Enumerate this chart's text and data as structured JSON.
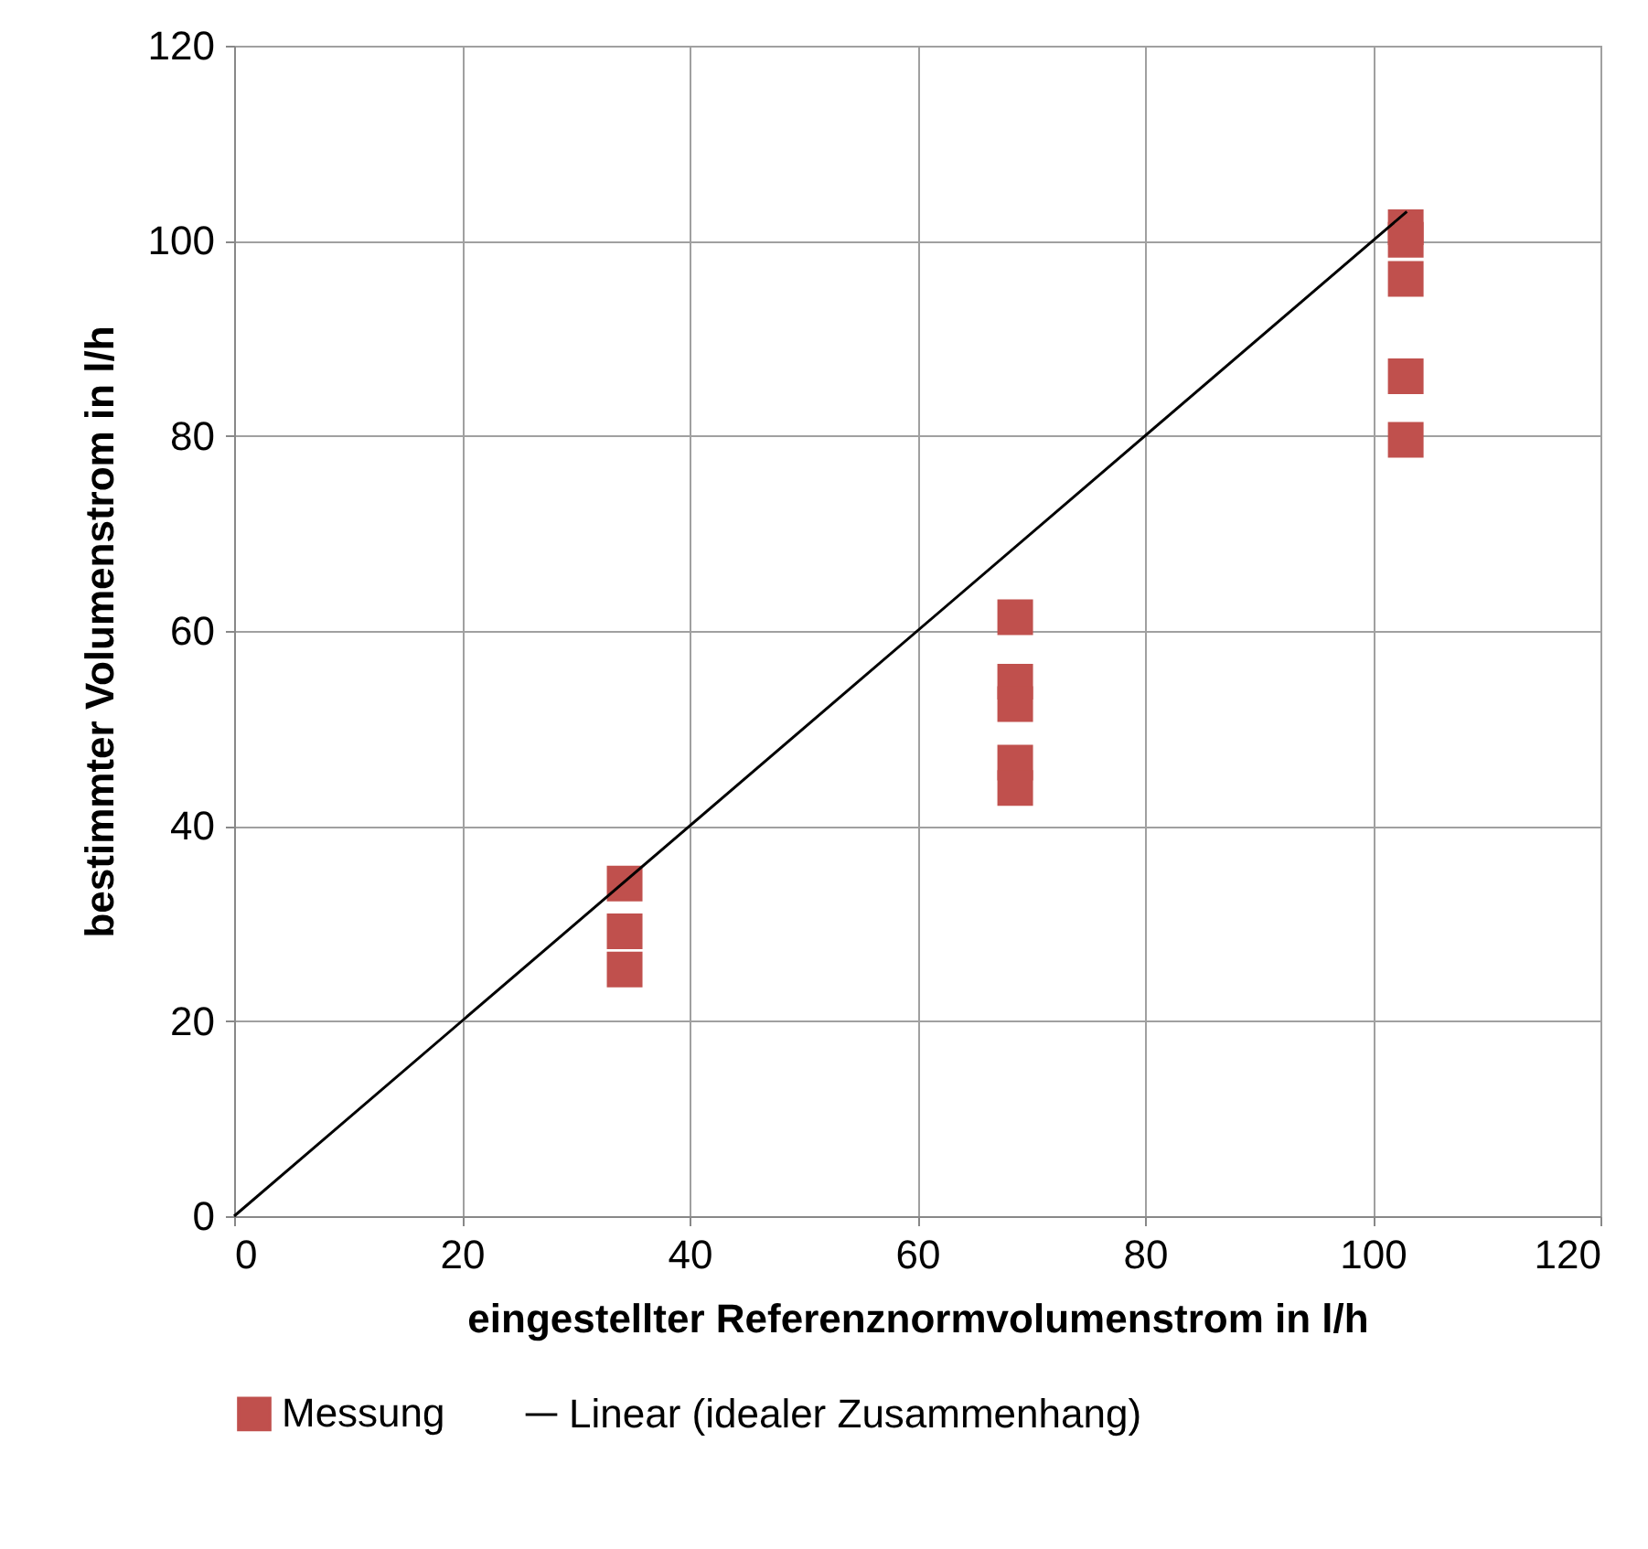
{
  "chart_data": {
    "type": "scatter",
    "xlabel": "eingestellter Referenznormvolumenstrom in l/h",
    "ylabel": "bestimmter Volumenstrom in l/h",
    "xlim": [
      0,
      120
    ],
    "xticks": [
      0,
      20,
      40,
      60,
      80,
      100,
      120
    ],
    "ylim": [
      0,
      120
    ],
    "yticks": [
      0,
      20,
      40,
      60,
      80,
      100,
      120
    ],
    "grid": true,
    "legend": "bottom",
    "series": [
      {
        "name": "Messung",
        "color": "#c0504d",
        "marker": "square",
        "x": [
          34.3,
          34.3,
          34.3,
          68.6,
          68.6,
          68.6,
          68.6,
          68.6,
          102.9,
          102.9,
          102.9,
          102.9,
          102.9
        ],
        "values": [
          34.1,
          29.2,
          25.3,
          61.4,
          54.8,
          52.5,
          46.5,
          43.9,
          101.4,
          100.1,
          96.1,
          86.1,
          79.6
        ]
      },
      {
        "name": "Linear (idealer Zusammenhang)",
        "type": "line",
        "color": "#000000",
        "marker": "none",
        "x": [
          0,
          103
        ],
        "values": [
          0,
          103
        ]
      }
    ]
  }
}
